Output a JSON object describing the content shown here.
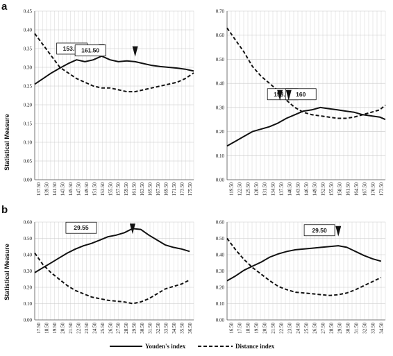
{
  "panel_labels": [
    "a",
    "b"
  ],
  "y_axis_label": "Statistical Measure",
  "legend": {
    "youden": "Youden's index",
    "distance": "Distance index"
  },
  "chart_data": [
    {
      "type": "line",
      "panel": "a",
      "ylim": [
        0,
        0.45
      ],
      "yticks": [
        "0.00",
        "0.05",
        "0.10",
        "0.15",
        "0.20",
        "0.25",
        "0.30",
        "0.35",
        "0.40",
        "0.45"
      ],
      "xticks": [
        "137.50",
        "139.50",
        "141.50",
        "143.50",
        "145.50",
        "147.50",
        "149.50",
        "151.50",
        "153.50",
        "155.50",
        "157.50",
        "159.50",
        "161.50",
        "163.50",
        "165.50",
        "167.50",
        "169.50",
        "171.50",
        "173.50",
        "175.50"
      ],
      "xlim": [
        137.5,
        175.5
      ],
      "series": [
        {
          "name": "Youden's index",
          "style": "solid",
          "x": [
            137.5,
            139.5,
            141.5,
            143.5,
            145.5,
            147.5,
            149.5,
            151.5,
            153.5,
            155.5,
            157.5,
            159.5,
            161.5,
            163.5,
            165.5,
            167.5,
            169.5,
            171.5,
            173.5,
            175.5
          ],
          "y": [
            0.255,
            0.27,
            0.285,
            0.298,
            0.31,
            0.32,
            0.315,
            0.32,
            0.33,
            0.32,
            0.315,
            0.317,
            0.315,
            0.31,
            0.305,
            0.302,
            0.3,
            0.298,
            0.295,
            0.29
          ]
        },
        {
          "name": "Distance index",
          "style": "dashed",
          "x": [
            137.5,
            139.5,
            141.5,
            143.5,
            145.5,
            147.5,
            149.5,
            151.5,
            153.5,
            155.5,
            157.5,
            159.5,
            161.5,
            163.5,
            165.5,
            167.5,
            169.5,
            171.5,
            173.5,
            175.5
          ],
          "y": [
            0.39,
            0.36,
            0.33,
            0.3,
            0.285,
            0.27,
            0.26,
            0.25,
            0.245,
            0.245,
            0.24,
            0.235,
            0.235,
            0.24,
            0.245,
            0.25,
            0.255,
            0.26,
            0.27,
            0.285
          ]
        }
      ],
      "callouts": [
        {
          "text": "153.52",
          "box_x": 146.4,
          "arrow_x": 153.5,
          "box_y": 0.35
        },
        {
          "text": "161.50",
          "box_x": 150.8,
          "arrow_x": 161.5,
          "box_y": 0.345
        }
      ]
    },
    {
      "type": "line",
      "panel": "a",
      "ylim": [
        0,
        0.7
      ],
      "yticks": [
        "0.00",
        "0.10",
        "0.20",
        "0.30",
        "0.40",
        "0.50",
        "0.60",
        "0.70"
      ],
      "xticks": [
        "119.50",
        "122.50",
        "125.50",
        "128.50",
        "131.50",
        "134.50",
        "137.50",
        "140.50",
        "143.50",
        "146.50",
        "149.50",
        "152.50",
        "155.50",
        "158.50",
        "161.50",
        "164.50",
        "167.50",
        "170.50",
        "173.50"
      ],
      "xlim": [
        119.5,
        175.5
      ],
      "series": [
        {
          "name": "Youden's index",
          "style": "solid",
          "x": [
            119.5,
            122.5,
            125.5,
            128.5,
            131.5,
            134.5,
            137.5,
            140.5,
            143.5,
            146.5,
            149.5,
            152.5,
            155.5,
            158.5,
            161.5,
            164.5,
            167.5,
            170.5,
            173.5,
            175.5
          ],
          "y": [
            0.14,
            0.16,
            0.18,
            0.2,
            0.21,
            0.22,
            0.235,
            0.255,
            0.27,
            0.285,
            0.29,
            0.3,
            0.295,
            0.29,
            0.285,
            0.28,
            0.27,
            0.265,
            0.26,
            0.25
          ]
        },
        {
          "name": "Distance index",
          "style": "dashed",
          "x": [
            119.5,
            122.5,
            125.5,
            128.5,
            131.5,
            134.5,
            137.5,
            140.5,
            143.5,
            146.5,
            149.5,
            152.5,
            155.5,
            158.5,
            161.5,
            164.5,
            167.5,
            170.5,
            173.5,
            175.5
          ],
          "y": [
            0.63,
            0.58,
            0.53,
            0.47,
            0.43,
            0.4,
            0.37,
            0.33,
            0.3,
            0.28,
            0.27,
            0.265,
            0.26,
            0.255,
            0.255,
            0.26,
            0.27,
            0.28,
            0.29,
            0.31
          ]
        }
      ],
      "callouts": [
        {
          "text": "153.50",
          "box_x": 139.2,
          "arrow_x": 138.2,
          "box_y": 0.355
        },
        {
          "text": "160",
          "box_x": 145.6,
          "arrow_x": 141.3,
          "box_y": 0.355
        }
      ]
    },
    {
      "type": "line",
      "panel": "b",
      "ylim": [
        0,
        0.6
      ],
      "yticks": [
        "0.00",
        "0.10",
        "0.20",
        "0.30",
        "0.40",
        "0.50",
        "0.60"
      ],
      "xticks": [
        "17.50",
        "18.50",
        "19.50",
        "20.50",
        "21.50",
        "22.50",
        "23.50",
        "24.50",
        "25.50",
        "26.50",
        "27.50",
        "28.50",
        "29.50",
        "30.50",
        "31.50",
        "32.50",
        "33.50",
        "34.50",
        "35.50",
        "36.50"
      ],
      "xlim": [
        17.5,
        37.0
      ],
      "series": [
        {
          "name": "Youden's index",
          "style": "solid",
          "x": [
            17.5,
            18.5,
            19.5,
            20.5,
            21.5,
            22.5,
            23.5,
            24.5,
            25.5,
            26.5,
            27.5,
            28.5,
            29.5,
            30.5,
            31.5,
            32.5,
            33.5,
            34.5,
            35.5,
            36.5
          ],
          "y": [
            0.29,
            0.32,
            0.35,
            0.38,
            0.41,
            0.435,
            0.455,
            0.47,
            0.49,
            0.51,
            0.52,
            0.535,
            0.56,
            0.555,
            0.52,
            0.49,
            0.46,
            0.445,
            0.435,
            0.42
          ]
        },
        {
          "name": "Distance index",
          "style": "dashed",
          "x": [
            17.5,
            18.5,
            19.5,
            20.5,
            21.5,
            22.5,
            23.5,
            24.5,
            25.5,
            26.5,
            27.5,
            28.5,
            29.5,
            30.5,
            31.5,
            32.5,
            33.5,
            34.5,
            35.5,
            36.5
          ],
          "y": [
            0.41,
            0.34,
            0.29,
            0.25,
            0.21,
            0.18,
            0.16,
            0.14,
            0.13,
            0.12,
            0.115,
            0.11,
            0.1,
            0.11,
            0.13,
            0.16,
            0.19,
            0.205,
            0.22,
            0.245
          ]
        }
      ],
      "callouts": [
        {
          "text": "29.55",
          "box_x": 23.2,
          "arrow_x": 29.5,
          "box_y": 0.565
        }
      ]
    },
    {
      "type": "line",
      "panel": "b",
      "ylim": [
        0,
        0.6
      ],
      "yticks": [
        "0.00",
        "0.10",
        "0.20",
        "0.30",
        "0.40",
        "0.50",
        "0.60"
      ],
      "xticks": [
        "16.50",
        "17.50",
        "18.50",
        "19.50",
        "20.50",
        "21.50",
        "22.50",
        "23.50",
        "24.50",
        "25.50",
        "26.50",
        "27.50",
        "28.50",
        "29.50",
        "30.50",
        "31.50",
        "32.50",
        "33.50",
        "34.50"
      ],
      "xlim": [
        16.5,
        35.0
      ],
      "series": [
        {
          "name": "Youden's index",
          "style": "solid",
          "x": [
            16.5,
            17.5,
            18.5,
            19.5,
            20.5,
            21.5,
            22.5,
            23.5,
            24.5,
            25.5,
            26.5,
            27.5,
            28.5,
            29.5,
            30.5,
            31.5,
            32.5,
            33.5,
            34.5
          ],
          "y": [
            0.24,
            0.27,
            0.305,
            0.33,
            0.355,
            0.385,
            0.405,
            0.42,
            0.43,
            0.435,
            0.44,
            0.445,
            0.45,
            0.455,
            0.445,
            0.42,
            0.395,
            0.375,
            0.36
          ]
        },
        {
          "name": "Distance index",
          "style": "dashed",
          "x": [
            16.5,
            17.5,
            18.5,
            19.5,
            20.5,
            21.5,
            22.5,
            23.5,
            24.5,
            25.5,
            26.5,
            27.5,
            28.5,
            29.5,
            30.5,
            31.5,
            32.5,
            33.5,
            34.5
          ],
          "y": [
            0.5,
            0.43,
            0.37,
            0.32,
            0.28,
            0.24,
            0.205,
            0.185,
            0.17,
            0.165,
            0.16,
            0.155,
            0.15,
            0.155,
            0.165,
            0.185,
            0.21,
            0.235,
            0.26
          ]
        }
      ],
      "callouts": [
        {
          "text": "29.50",
          "box_x": 27.3,
          "arrow_x": 29.5,
          "box_y": 0.55
        }
      ]
    }
  ]
}
